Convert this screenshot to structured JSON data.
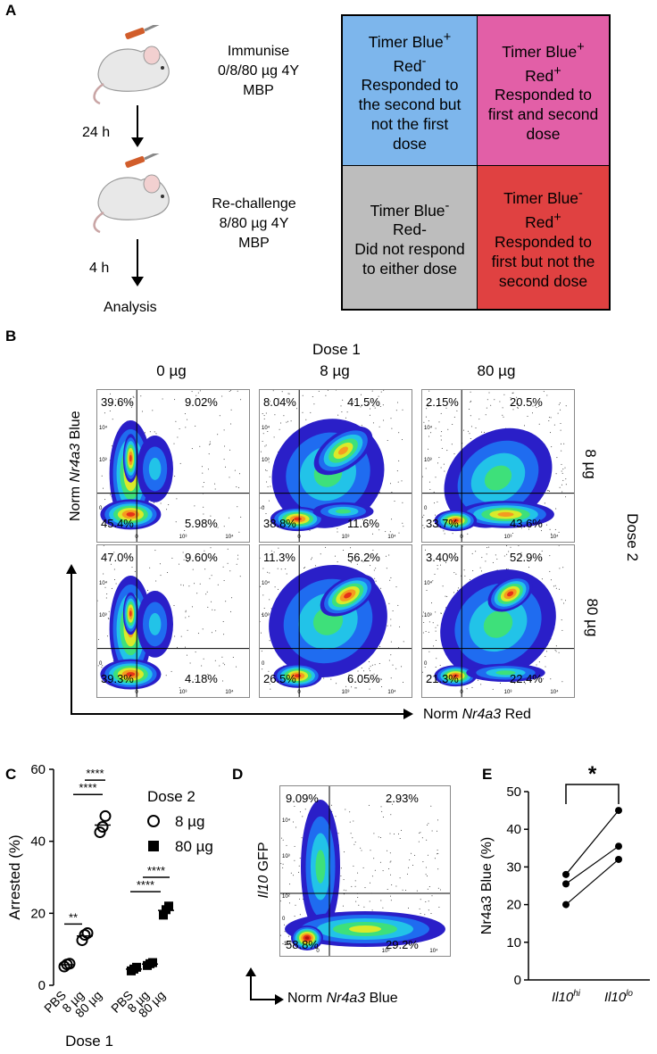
{
  "panels": {
    "A": {
      "label": "A",
      "step1": [
        "Immunise",
        "0/8/80 µg 4Y",
        "MBP"
      ],
      "interval1": "24 h",
      "step2": [
        "Re-challenge",
        "8/80 µg 4Y",
        "MBP"
      ],
      "interval2": "4 h",
      "final": "Analysis",
      "quadrants": {
        "tl": {
          "title": "Timer Blue",
          "sup1": "+",
          "line2": "Red",
          "sup2": "-",
          "desc": [
            "Responded to",
            "the second but",
            "not the first",
            "dose"
          ],
          "color": "#7db6ec"
        },
        "tr": {
          "title": "Timer Blue",
          "sup1": "+",
          "line2": "Red",
          "sup2": "+",
          "desc": [
            "Responded to",
            "first and second",
            "dose"
          ],
          "color": "#e25fa7"
        },
        "bl": {
          "title": "Timer Blue",
          "sup1": "-",
          "line2": "Red-",
          "desc": [
            "Did not respond",
            "to either dose"
          ],
          "color": "#bdbdbd"
        },
        "br": {
          "title": "Timer Blue",
          "sup1": "-",
          "line2": "Red",
          "sup2": "+",
          "desc": [
            "Responded to",
            "first but not the",
            "second dose"
          ],
          "color": "#e04141"
        }
      }
    },
    "B": {
      "label": "B",
      "dose1_title": "Dose 1",
      "col_labels": [
        "0 µg",
        "8 µg",
        "80 µg"
      ],
      "dose2_title": "Dose 2",
      "row_labels": [
        "8 µg",
        "80 µg"
      ],
      "y_axis": {
        "prefix": "Norm ",
        "italic": "Nr4a3",
        "suffix": " Blue"
      },
      "x_axis": {
        "prefix": "Norm ",
        "italic": "Nr4a3",
        "suffix": " Red"
      },
      "ticks": {
        "y": [
          "10⁴",
          "10³",
          "0"
        ],
        "x": [
          "0",
          "10³",
          "10⁴"
        ]
      },
      "plots": [
        {
          "tl": "39.6%",
          "tr": "9.02%",
          "bl": "45.4%",
          "br": "5.98%"
        },
        {
          "tl": "8.04%",
          "tr": "41.5%",
          "bl": "38.8%",
          "br": "11.6%"
        },
        {
          "tl": "2.15%",
          "tr": "20.5%",
          "bl": "33.7%",
          "br": "43.6%"
        },
        {
          "tl": "47.0%",
          "tr": "9.60%",
          "bl": "39.3%",
          "br": "4.18%"
        },
        {
          "tl": "11.3%",
          "tr": "56.2%",
          "bl": "26.5%",
          "br": "6.05%"
        },
        {
          "tl": "3.40%",
          "tr": "52.9%",
          "bl": "21.3%",
          "br": "22.4%"
        }
      ]
    },
    "C": {
      "label": "C",
      "legend_title": "Dose 2",
      "sig": [
        "**",
        "****",
        "****",
        "****",
        "****"
      ]
    },
    "D": {
      "label": "D",
      "y_axis": {
        "italic": "Il10",
        "suffix": " GFP"
      },
      "x_axis": {
        "prefix": "Norm ",
        "italic": "Nr4a3",
        "suffix": " Blue"
      },
      "ticks": {
        "y": [
          "10⁴",
          "10³",
          "10²",
          "0",
          "-10²"
        ],
        "x": [
          "0",
          "10³",
          "10⁴"
        ]
      },
      "pcts": {
        "tl": "9.09%",
        "tr": "2.93%",
        "bl": "58.8%",
        "br": "29.2%"
      }
    },
    "E": {
      "label": "E",
      "sig": "*"
    }
  },
  "chart_data": [
    {
      "type": "scatter",
      "title": "",
      "xlabel": "Dose 1",
      "ylabel": "Arrested (%)",
      "ylim": [
        0,
        60
      ],
      "yticks": [
        "0",
        "20",
        "40",
        "60"
      ],
      "groups": [
        "8 µg",
        "80 µg"
      ],
      "categories": [
        "PBS",
        "8 µg",
        "80 µg"
      ],
      "series": [
        {
          "name": "8 µg",
          "marker": "open-circle",
          "values": [
            [
              5.2,
              5.8,
              6.0
            ],
            [
              12.5,
              14.0,
              14.5
            ],
            [
              42.5,
              44.0,
              47.0
            ]
          ],
          "means": [
            5.7,
            13.7,
            44.5
          ]
        },
        {
          "name": "80 µg",
          "marker": "filled-square",
          "values": [
            [
              4.0,
              4.5,
              5.0
            ],
            [
              5.5,
              6.0,
              6.3
            ],
            [
              19.5,
              21.0,
              22.0
            ]
          ],
          "means": [
            4.5,
            5.9,
            20.8
          ]
        }
      ]
    },
    {
      "type": "line",
      "title": "",
      "xlabel": "",
      "ylabel": "Nr4a3 Blue (%)",
      "ylim": [
        0,
        50
      ],
      "yticks": [
        "0",
        "10",
        "20",
        "30",
        "40",
        "50"
      ],
      "categories": [
        "Il10hi",
        "Il10lo"
      ],
      "cat_main": [
        "Il10",
        "Il10"
      ],
      "cat_sup": [
        "hi",
        "lo"
      ],
      "pairs": [
        [
          28,
          45
        ],
        [
          25.5,
          35.5
        ],
        [
          20,
          32
        ]
      ]
    }
  ]
}
